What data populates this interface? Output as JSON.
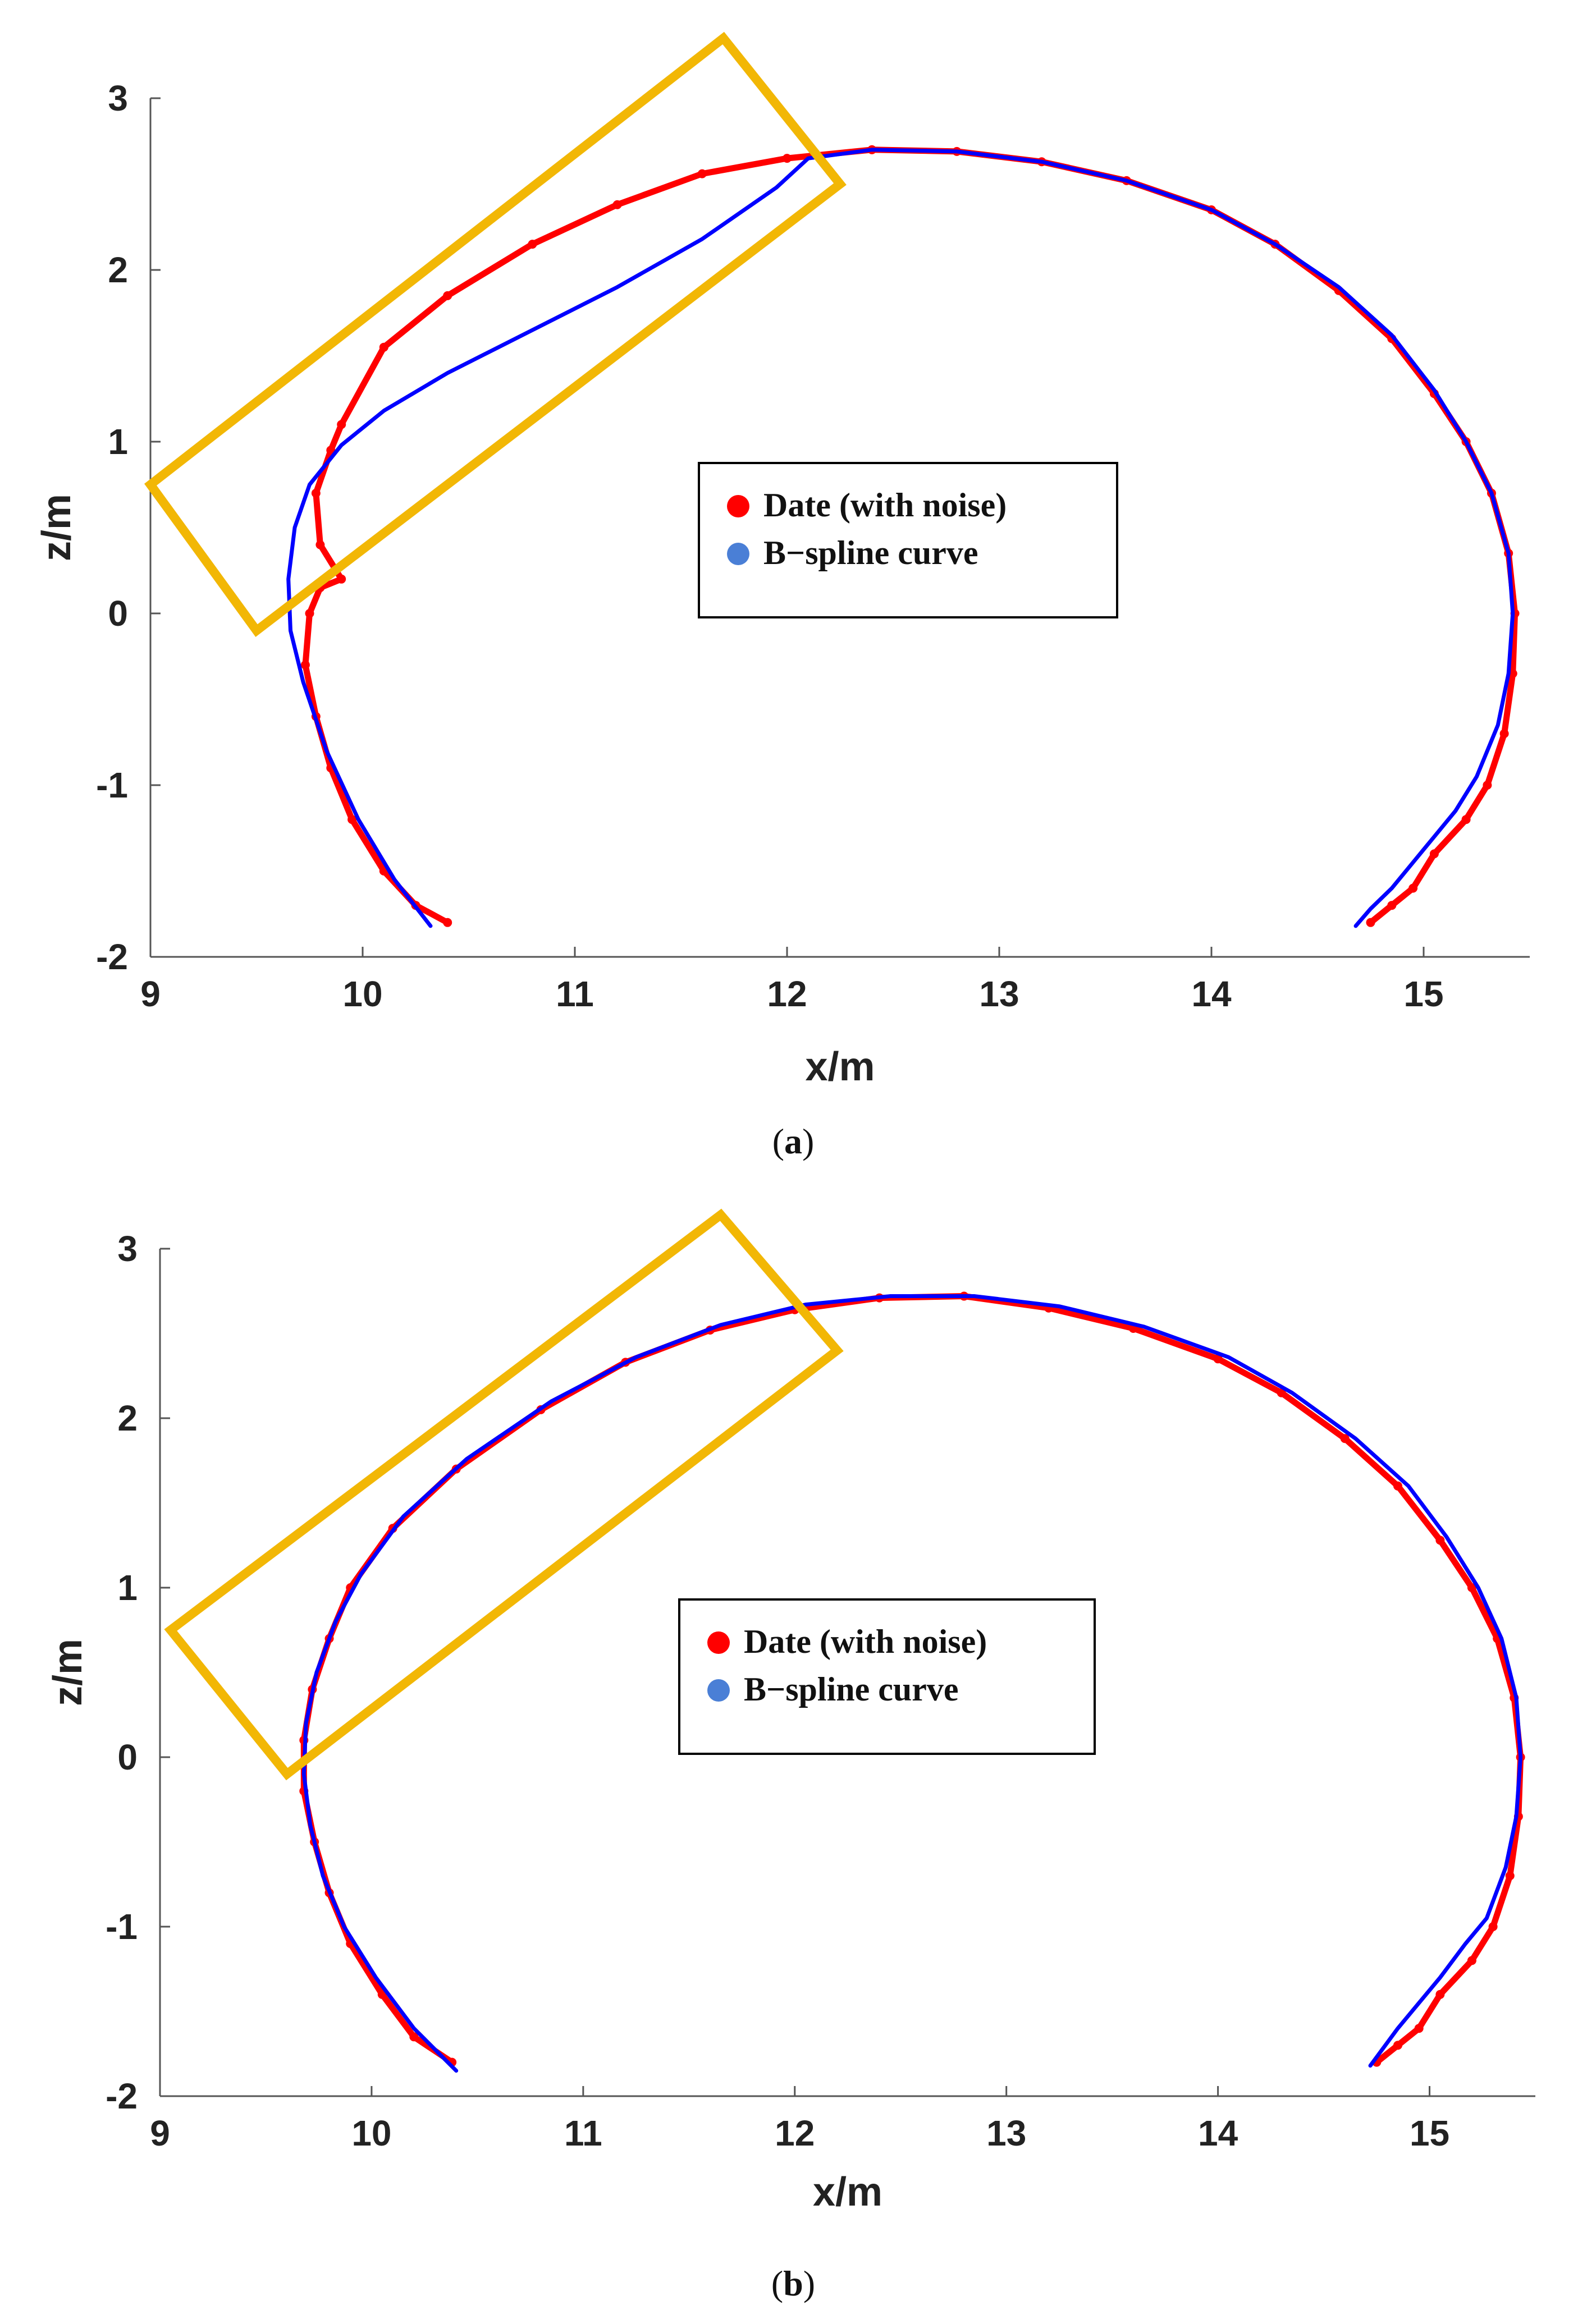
{
  "chart_data": [
    {
      "panel": "a",
      "type": "line",
      "xlabel": "x/m",
      "ylabel": "z/m",
      "xlim": [
        9,
        15.5
      ],
      "ylim": [
        -2,
        3
      ],
      "xticks": [
        9,
        10,
        11,
        12,
        13,
        14,
        15
      ],
      "yticks": [
        -2,
        -1,
        0,
        1,
        2,
        3
      ],
      "grid": false,
      "legend_position": "center-right",
      "caption": {
        "open": "(",
        "letter": "a",
        "close": ")"
      },
      "series": [
        {
          "name": "Date (with noise)",
          "color": "#ff0000",
          "marker": "dot",
          "x": [
            10.4,
            10.25,
            10.1,
            9.95,
            9.85,
            9.78,
            9.73,
            9.75,
            9.8,
            9.9,
            9.8,
            9.78,
            9.85,
            9.9,
            10.1,
            10.4,
            10.8,
            11.2,
            11.6,
            12.0,
            12.4,
            12.8,
            13.2,
            13.6,
            14.0,
            14.3,
            14.6,
            14.85,
            15.05,
            15.2,
            15.32,
            15.4,
            15.43,
            15.42,
            15.38,
            15.3,
            15.2,
            15.05,
            14.95,
            14.85,
            14.75
          ],
          "y": [
            -1.8,
            -1.7,
            -1.5,
            -1.2,
            -0.9,
            -0.6,
            -0.3,
            0.0,
            0.15,
            0.2,
            0.4,
            0.7,
            0.95,
            1.1,
            1.55,
            1.85,
            2.15,
            2.38,
            2.56,
            2.65,
            2.7,
            2.69,
            2.63,
            2.52,
            2.35,
            2.15,
            1.88,
            1.6,
            1.28,
            1.0,
            0.7,
            0.35,
            0.0,
            -0.35,
            -0.7,
            -1.0,
            -1.2,
            -1.4,
            -1.6,
            -1.7,
            -1.8
          ]
        },
        {
          "name": "B−spline curve",
          "color": "#0000ff",
          "marker": "line",
          "x": [
            10.32,
            10.15,
            9.98,
            9.83,
            9.72,
            9.66,
            9.65,
            9.68,
            9.75,
            9.9,
            10.1,
            10.4,
            10.8,
            11.2,
            11.6,
            11.95,
            12.1,
            12.4,
            12.8,
            13.2,
            13.6,
            14.0,
            14.3,
            14.6,
            14.85,
            15.05,
            15.2,
            15.32,
            15.4,
            15.42,
            15.4,
            15.35,
            15.25,
            15.15,
            15.05,
            14.95,
            14.85,
            14.75,
            14.68
          ],
          "y": [
            -1.82,
            -1.55,
            -1.2,
            -0.8,
            -0.4,
            -0.1,
            0.2,
            0.5,
            0.75,
            0.98,
            1.18,
            1.4,
            1.65,
            1.9,
            2.18,
            2.48,
            2.65,
            2.7,
            2.69,
            2.63,
            2.52,
            2.35,
            2.15,
            1.9,
            1.62,
            1.3,
            1.0,
            0.7,
            0.35,
            0.0,
            -0.35,
            -0.65,
            -0.95,
            -1.15,
            -1.3,
            -1.45,
            -1.6,
            -1.72,
            -1.82
          ]
        }
      ],
      "highlight_box": {
        "corners": [
          [
            9.0,
            0.75
          ],
          [
            9.5,
            -0.1
          ],
          [
            12.25,
            2.5
          ],
          [
            11.7,
            3.35
          ]
        ],
        "color": "#f2b705"
      }
    },
    {
      "panel": "b",
      "type": "line",
      "xlabel": "x/m",
      "ylabel": "z/m",
      "xlim": [
        9,
        15.5
      ],
      "ylim": [
        -2,
        3
      ],
      "xticks": [
        9,
        10,
        11,
        12,
        13,
        14,
        15
      ],
      "yticks": [
        -2,
        -1,
        0,
        1,
        2,
        3
      ],
      "grid": false,
      "legend_position": "center-right",
      "caption": {
        "open": "(",
        "letter": "b",
        "close": ")"
      },
      "series": [
        {
          "name": "Date (with noise)",
          "color": "#ff0000",
          "marker": "dot",
          "x": [
            10.38,
            10.2,
            10.05,
            9.9,
            9.8,
            9.73,
            9.68,
            9.68,
            9.72,
            9.8,
            9.9,
            10.1,
            10.4,
            10.8,
            11.2,
            11.6,
            12.0,
            12.4,
            12.8,
            13.2,
            13.6,
            14.0,
            14.3,
            14.6,
            14.85,
            15.05,
            15.2,
            15.32,
            15.4,
            15.43,
            15.42,
            15.38,
            15.3,
            15.2,
            15.05,
            14.95,
            14.85,
            14.75
          ],
          "y": [
            -1.8,
            -1.65,
            -1.4,
            -1.1,
            -0.8,
            -0.5,
            -0.2,
            0.1,
            0.4,
            0.7,
            1.0,
            1.35,
            1.7,
            2.05,
            2.33,
            2.52,
            2.64,
            2.71,
            2.72,
            2.65,
            2.53,
            2.35,
            2.15,
            1.88,
            1.6,
            1.28,
            1.0,
            0.7,
            0.35,
            0.0,
            -0.35,
            -0.7,
            -1.0,
            -1.2,
            -1.4,
            -1.6,
            -1.7,
            -1.8
          ]
        },
        {
          "name": "B−spline curve",
          "color": "#0000ff",
          "marker": "line",
          "x": [
            10.4,
            10.2,
            10.02,
            9.87,
            9.77,
            9.71,
            9.68,
            9.69,
            9.74,
            9.83,
            9.95,
            10.15,
            10.45,
            10.85,
            11.25,
            11.65,
            12.05,
            12.45,
            12.85,
            13.25,
            13.65,
            14.05,
            14.35,
            14.65,
            14.9,
            15.08,
            15.23,
            15.34,
            15.41,
            15.43,
            15.41,
            15.36,
            15.27,
            15.17,
            15.05,
            14.95,
            14.85,
            14.72
          ],
          "y": [
            -1.85,
            -1.6,
            -1.3,
            -1.0,
            -0.7,
            -0.4,
            -0.1,
            0.2,
            0.5,
            0.8,
            1.08,
            1.42,
            1.76,
            2.1,
            2.36,
            2.55,
            2.67,
            2.72,
            2.72,
            2.66,
            2.54,
            2.36,
            2.15,
            1.88,
            1.6,
            1.3,
            1.0,
            0.7,
            0.35,
            0.0,
            -0.35,
            -0.65,
            -0.95,
            -1.1,
            -1.3,
            -1.45,
            -1.6,
            -1.82
          ]
        }
      ],
      "highlight_box": {
        "corners": [
          [
            9.05,
            0.75
          ],
          [
            9.6,
            -0.1
          ],
          [
            12.2,
            2.4
          ],
          [
            11.65,
            3.2
          ]
        ],
        "color": "#f2b705"
      }
    }
  ]
}
